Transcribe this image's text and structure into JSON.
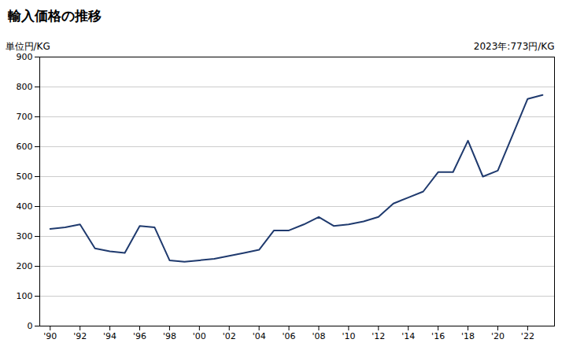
{
  "chart_data": {
    "type": "line",
    "title": "輸入価格の推移",
    "y_label": "単位円/KG",
    "annotation": "2023年:773円/KG",
    "x": [
      1990,
      1991,
      1992,
      1993,
      1994,
      1995,
      1996,
      1997,
      1998,
      1999,
      2000,
      2001,
      2002,
      2003,
      2004,
      2005,
      2006,
      2007,
      2008,
      2009,
      2010,
      2011,
      2012,
      2013,
      2014,
      2015,
      2016,
      2017,
      2018,
      2019,
      2020,
      2021,
      2022,
      2023
    ],
    "values": [
      325,
      330,
      340,
      260,
      250,
      245,
      335,
      330,
      220,
      215,
      220,
      225,
      235,
      245,
      255,
      320,
      320,
      340,
      365,
      335,
      340,
      350,
      365,
      410,
      430,
      450,
      515,
      515,
      620,
      500,
      520,
      640,
      760,
      773
    ],
    "color": "#1f3a6e",
    "xlim": [
      1989.3,
      2023.8
    ],
    "xticks": [
      {
        "value": 1990,
        "label": "'90"
      },
      {
        "value": 1992,
        "label": "'92"
      },
      {
        "value": 1994,
        "label": "'94"
      },
      {
        "value": 1996,
        "label": "'96"
      },
      {
        "value": 1998,
        "label": "'98"
      },
      {
        "value": 2000,
        "label": "'00"
      },
      {
        "value": 2002,
        "label": "'02"
      },
      {
        "value": 2004,
        "label": "'04"
      },
      {
        "value": 2006,
        "label": "'06"
      },
      {
        "value": 2008,
        "label": "'08"
      },
      {
        "value": 2010,
        "label": "'10"
      },
      {
        "value": 2012,
        "label": "'12"
      },
      {
        "value": 2014,
        "label": "'14"
      },
      {
        "value": 2016,
        "label": "'16"
      },
      {
        "value": 2018,
        "label": "'18"
      },
      {
        "value": 2020,
        "label": "'20"
      },
      {
        "value": 2022,
        "label": "'22"
      }
    ],
    "ylim": [
      0,
      900
    ],
    "yticks": [
      0,
      100,
      200,
      300,
      400,
      500,
      600,
      700,
      800,
      900
    ],
    "grid": "y"
  }
}
